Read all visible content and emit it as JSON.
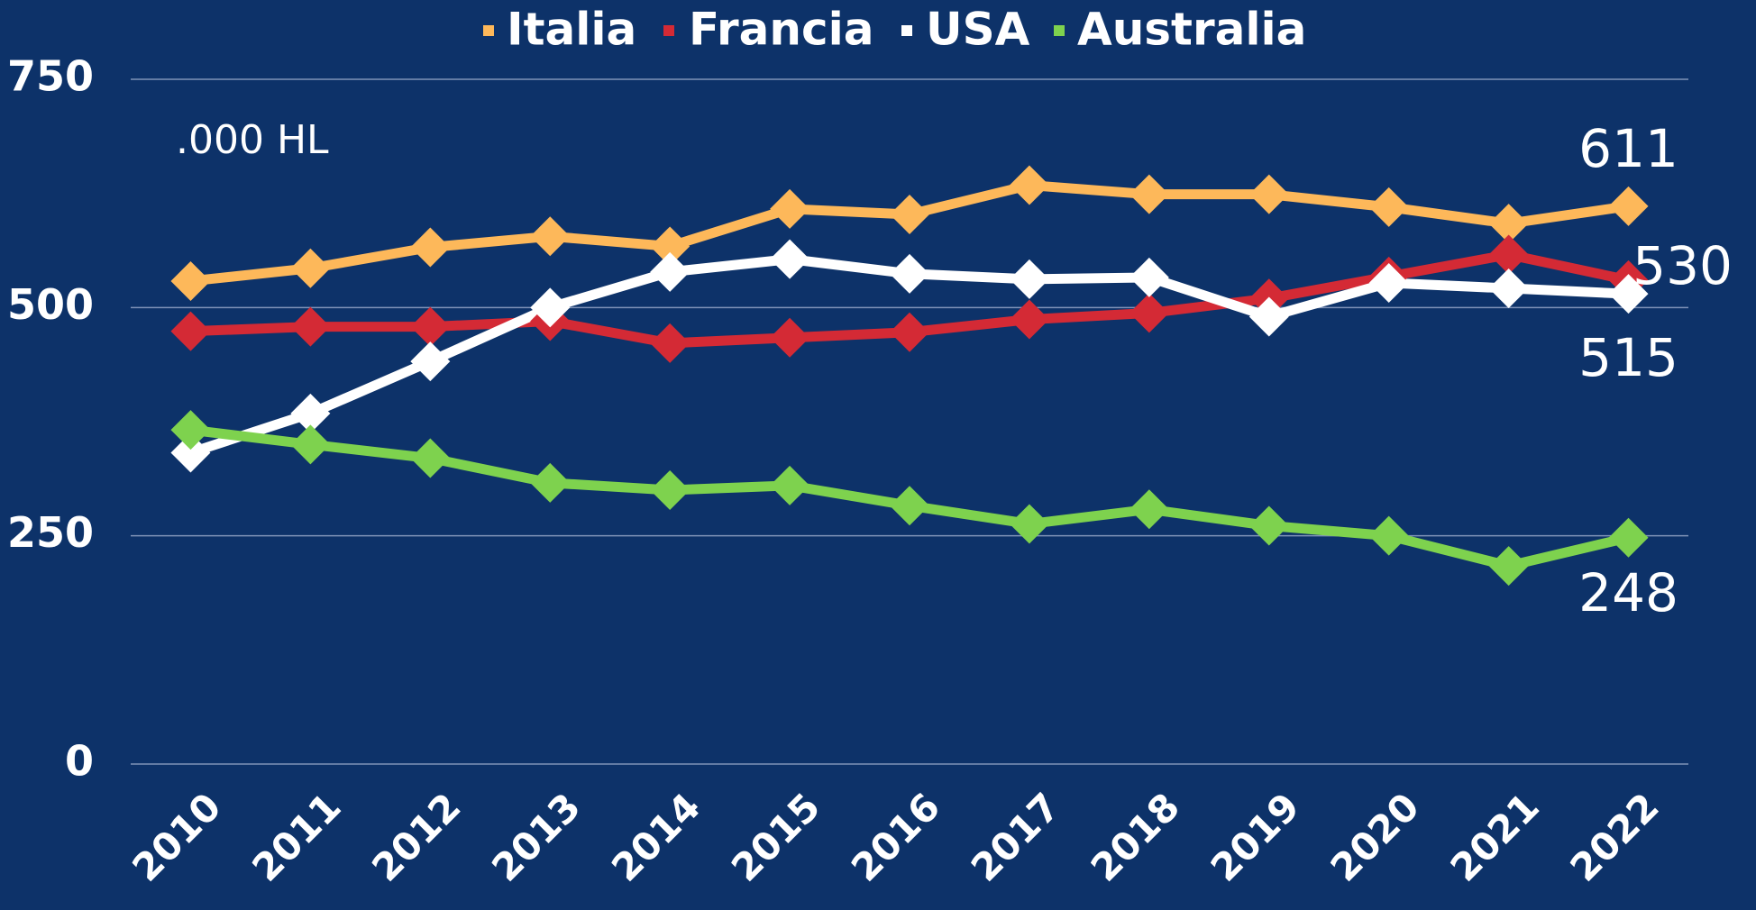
{
  "chart_data": {
    "type": "line",
    "annotation": ".000 HL",
    "categories": [
      "2010",
      "2011",
      "2012",
      "2013",
      "2014",
      "2015",
      "2016",
      "2017",
      "2018",
      "2019",
      "2020",
      "2021",
      "2022"
    ],
    "series": [
      {
        "name": "Italia",
        "color": "#fdb85a",
        "values": [
          529,
          543,
          566,
          578,
          567,
          608,
          602,
          634,
          624,
          624,
          610,
          592,
          611
        ]
      },
      {
        "name": "Francia",
        "color": "#d42a35",
        "values": [
          474,
          479,
          479,
          485,
          461,
          467,
          473,
          487,
          494,
          510,
          534,
          558,
          530
        ]
      },
      {
        "name": "USA",
        "color": "#ffffff",
        "values": [
          341,
          384,
          441,
          500,
          539,
          553,
          537,
          531,
          533,
          490,
          527,
          521,
          515
        ]
      },
      {
        "name": "Australia",
        "color": "#7ed24e",
        "values": [
          366,
          350,
          335,
          308,
          300,
          305,
          283,
          263,
          279,
          261,
          250,
          217,
          248
        ]
      }
    ],
    "ylim": [
      0,
      750
    ],
    "yticks": [
      0,
      250,
      500,
      750
    ],
    "grid": true
  }
}
